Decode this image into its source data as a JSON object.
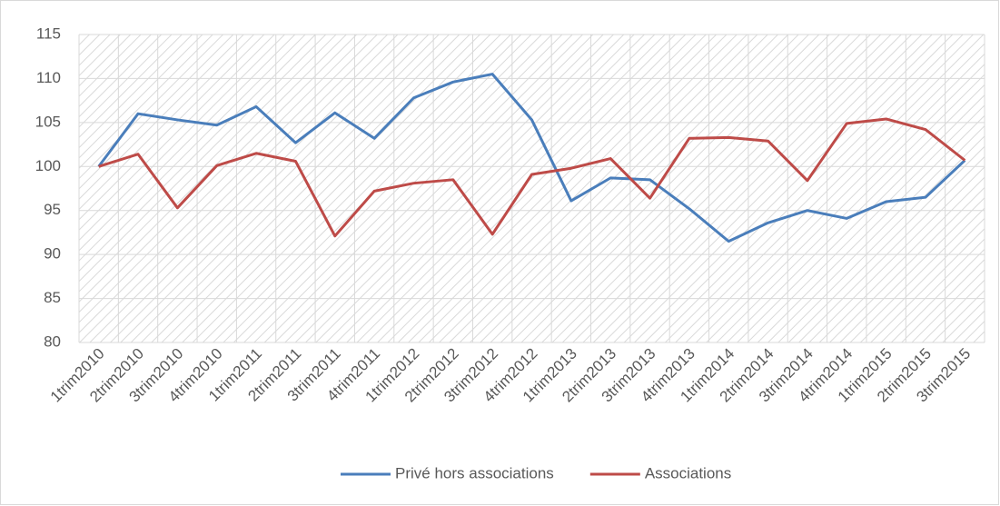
{
  "chart_data": {
    "type": "line",
    "categories": [
      "1trim2010",
      "2trim2010",
      "3trim2010",
      "4trim2010",
      "1trim2011",
      "2trim2011",
      "3trim2011",
      "4trim2011",
      "1trim2012",
      "2trim2012",
      "3trim2012",
      "4trim2012",
      "1trim2013",
      "2trim2013",
      "3trim2013",
      "4trim2013",
      "1trim2014",
      "2trim2014",
      "3trim2014",
      "4trim2014",
      "1trim2015",
      "2trim2015",
      "3trim2015"
    ],
    "series": [
      {
        "name": "Privé hors associations",
        "color": "#4a7ebb",
        "values": [
          100,
          106.0,
          105.3,
          104.7,
          106.8,
          102.7,
          106.1,
          103.2,
          107.8,
          109.6,
          110.5,
          105.3,
          96.1,
          98.7,
          98.5,
          95.2,
          91.5,
          93.6,
          95.0,
          94.1,
          96.0,
          96.5,
          100.7
        ]
      },
      {
        "name": "Associations",
        "color": "#be4b48",
        "values": [
          100,
          101.4,
          95.3,
          100.1,
          101.5,
          100.6,
          92.1,
          97.2,
          98.1,
          98.5,
          92.3,
          99.1,
          99.8,
          100.9,
          96.4,
          103.2,
          103.3,
          102.9,
          98.4,
          104.9,
          105.4,
          104.2,
          100.7
        ]
      }
    ],
    "ylim": [
      80,
      115
    ],
    "yticks": [
      80,
      85,
      90,
      95,
      100,
      105,
      110,
      115
    ],
    "grid": true,
    "legend": "bottom"
  }
}
